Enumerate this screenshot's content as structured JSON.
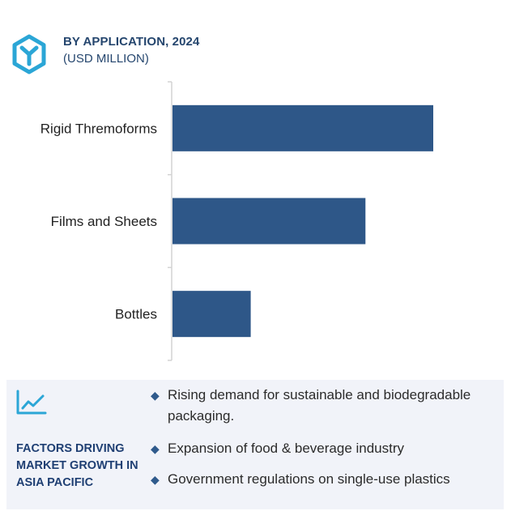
{
  "header": {
    "logo_icon": "hexagon-y-logo-icon",
    "title": "BY APPLICATION, 2024",
    "subtitle": "(USD MILLION)"
  },
  "chart_data": {
    "type": "bar",
    "orientation": "horizontal",
    "categories": [
      "Rigid Thremoforms",
      "Films and Sheets",
      "Bottles"
    ],
    "values": [
      100,
      74,
      30
    ],
    "title": "BY APPLICATION, 2024",
    "subtitle": "(USD MILLION)",
    "xlabel": "",
    "ylabel": "",
    "xlim": [
      0,
      100
    ],
    "grid": false,
    "legend": "none",
    "bar_color": "#2e5788",
    "axis_color": "#d3d3d3"
  },
  "factors": {
    "icon": "line-chart-trend-icon",
    "heading": "FACTORS DRIVING MARKET GROWTH IN ASIA PACIFIC",
    "items": [
      "Rising demand for sustainable and biodegradable packaging.",
      "Expansion of food & beverage industry",
      "Government regulations on single-use plastics"
    ],
    "bullet_icon": "diamond-bullet-icon",
    "background_color": "#f1f3f9",
    "accent_color": "#1f3f73"
  }
}
